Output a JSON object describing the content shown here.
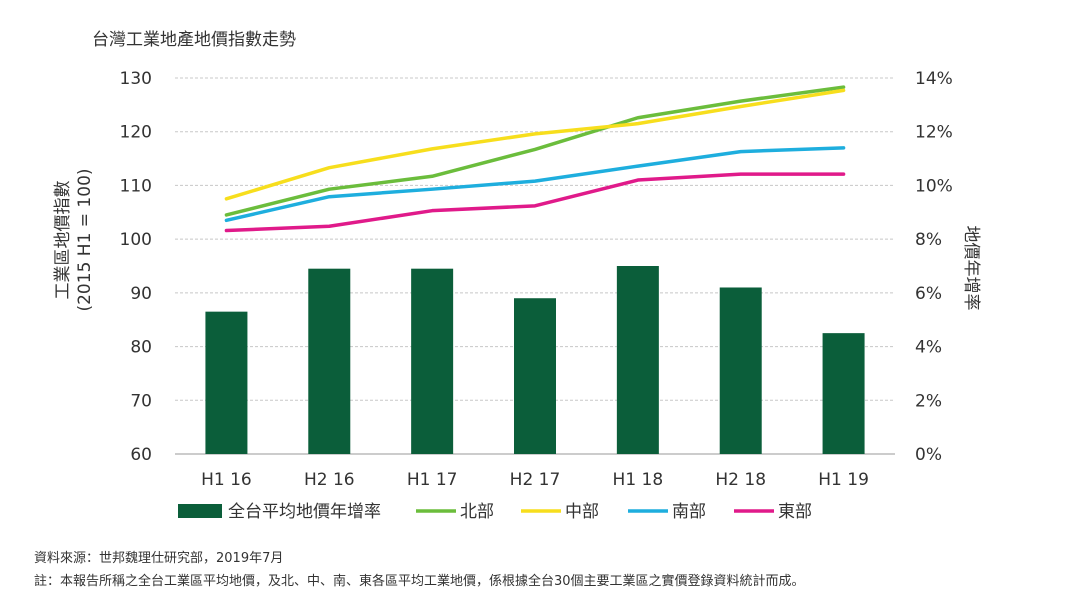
{
  "chart_data": {
    "type": "bar+line",
    "title": "台灣工業地產地價指數走勢",
    "categories": [
      "H1 16",
      "H2 16",
      "H1 17",
      "H2 17",
      "H1 18",
      "H2 18",
      "H1 19"
    ],
    "left_axis": {
      "label_lines": [
        "工業區地價指數",
        "(2015 H1 = 100)"
      ],
      "min": 60,
      "max": 130,
      "ticks": [
        "60",
        "70",
        "80",
        "90",
        "100",
        "110",
        "120",
        "130"
      ]
    },
    "right_axis": {
      "label": "地價年增率",
      "min": 0,
      "max": 14,
      "ticks": [
        "0%",
        "2%",
        "4%",
        "6%",
        "8%",
        "10%",
        "12%",
        "14%"
      ]
    },
    "bar_series": {
      "name": "全台平均地價年增率",
      "axis": "right",
      "color": "#0b5e3a",
      "values": [
        5.3,
        6.9,
        6.9,
        5.8,
        7.0,
        6.2,
        4.5
      ]
    },
    "series": [
      {
        "name": "北部",
        "axis": "left",
        "color": "#6bbd3c",
        "values": [
          104.5,
          109.3,
          111.7,
          116.7,
          122.6,
          125.7,
          128.3
        ]
      },
      {
        "name": "中部",
        "axis": "left",
        "color": "#f7de1d",
        "values": [
          107.5,
          113.3,
          116.8,
          119.6,
          121.5,
          124.7,
          127.7
        ]
      },
      {
        "name": "南部",
        "axis": "left",
        "color": "#1eaede",
        "values": [
          103.5,
          107.9,
          109.3,
          110.8,
          113.6,
          116.3,
          117.0
        ]
      },
      {
        "name": "東部",
        "axis": "left",
        "color": "#e01a8a",
        "values": [
          101.6,
          102.4,
          105.3,
          106.2,
          111.0,
          112.1,
          112.1
        ]
      }
    ],
    "grid": true,
    "legend_placement": "bottom"
  },
  "footnotes": {
    "source": "資料來源：世邦魏理仕研究部，2019年7月",
    "note": "註：本報告所稱之全台工業區平均地價，及北、中、南、東各區平均工業地價，係根據全台30個主要工業區之實價登錄資料統計而成。"
  }
}
